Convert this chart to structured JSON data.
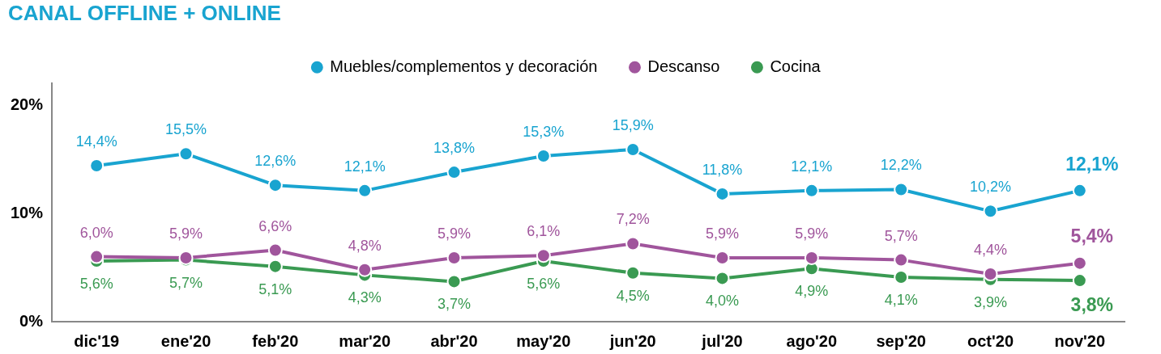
{
  "chart_data": {
    "type": "line",
    "title": "CANAL OFFLINE + ONLINE",
    "categories": [
      "dic'19",
      "ene'20",
      "feb'20",
      "mar'20",
      "abr'20",
      "may'20",
      "jun'20",
      "jul'20",
      "ago'20",
      "sep'20",
      "oct'20",
      "nov'20"
    ],
    "series": [
      {
        "name": "Muebles/complementos y decoración",
        "color": "#19a4d0",
        "values": [
          14.4,
          15.5,
          12.6,
          12.1,
          13.8,
          15.3,
          15.9,
          11.8,
          12.1,
          12.2,
          10.2,
          12.1
        ],
        "value_labels": [
          "14,4%",
          "15,5%",
          "12,6%",
          "12,1%",
          "13,8%",
          "15,3%",
          "15,9%",
          "11,8%",
          "12,1%",
          "12,2%",
          "10,2%",
          "12,1%"
        ]
      },
      {
        "name": "Descanso",
        "color": "#a0559c",
        "values": [
          6.0,
          5.9,
          6.6,
          4.8,
          5.9,
          6.1,
          7.2,
          5.9,
          5.9,
          5.7,
          4.4,
          5.4
        ],
        "value_labels": [
          "6,0%",
          "5,9%",
          "6,6%",
          "4,8%",
          "5,9%",
          "6,1%",
          "7,2%",
          "5,9%",
          "5,9%",
          "5,7%",
          "4,4%",
          "5,4%"
        ]
      },
      {
        "name": "Cocina",
        "color": "#3a9a52",
        "values": [
          5.6,
          5.7,
          5.1,
          4.3,
          3.7,
          5.6,
          4.5,
          4.0,
          4.9,
          4.1,
          3.9,
          3.8
        ],
        "value_labels": [
          "5,6%",
          "5,7%",
          "5,1%",
          "4,3%",
          "3,7%",
          "5,6%",
          "4,5%",
          "4,0%",
          "4,9%",
          "4,1%",
          "3,9%",
          "3,8%"
        ]
      }
    ],
    "ylim": [
      0,
      22
    ],
    "yticks": [
      {
        "value": 0,
        "label": "0%"
      },
      {
        "value": 10,
        "label": "10%"
      },
      {
        "value": 20,
        "label": "20%"
      }
    ],
    "grid": false,
    "legend": "top",
    "marker": "circle",
    "line_style": "solid"
  }
}
